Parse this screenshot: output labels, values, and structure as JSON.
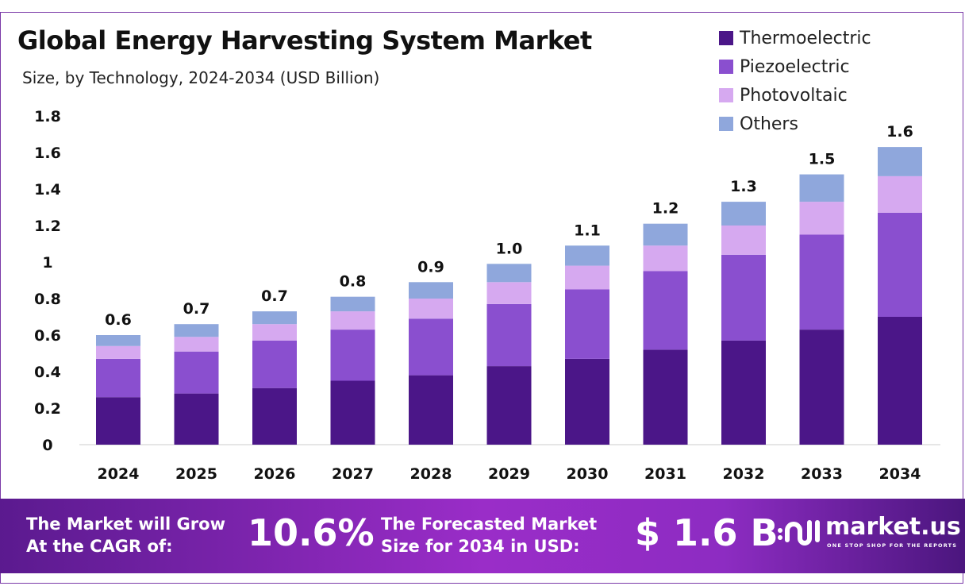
{
  "chart_data": {
    "type": "bar",
    "stacked": true,
    "title": "Global Energy Harvesting System Market",
    "subtitle": "Size, by Technology, 2024-2034 (USD Billion)",
    "categories": [
      "2024",
      "2025",
      "2026",
      "2027",
      "2028",
      "2029",
      "2030",
      "2031",
      "2032",
      "2033",
      "2034"
    ],
    "series": [
      {
        "name": "Thermoelectric",
        "color": "#4b1688",
        "values": [
          0.26,
          0.28,
          0.31,
          0.35,
          0.38,
          0.43,
          0.47,
          0.52,
          0.57,
          0.63,
          0.7
        ]
      },
      {
        "name": "Piezoelectric",
        "color": "#8a4fcf",
        "values": [
          0.21,
          0.23,
          0.26,
          0.28,
          0.31,
          0.34,
          0.38,
          0.43,
          0.47,
          0.52,
          0.57
        ]
      },
      {
        "name": "Photovoltaic",
        "color": "#d6a9f0",
        "values": [
          0.07,
          0.08,
          0.09,
          0.1,
          0.11,
          0.12,
          0.13,
          0.14,
          0.16,
          0.18,
          0.2
        ]
      },
      {
        "name": "Others",
        "color": "#8fa7dc",
        "values": [
          0.06,
          0.07,
          0.07,
          0.08,
          0.09,
          0.1,
          0.11,
          0.12,
          0.13,
          0.15,
          0.16
        ]
      }
    ],
    "totals_labels": [
      "0.6",
      "0.7",
      "0.7",
      "0.8",
      "0.9",
      "1.0",
      "1.1",
      "1.2",
      "1.3",
      "1.5",
      "1.6"
    ],
    "yticks": [
      "0",
      "0.2",
      "0.4",
      "0.6",
      "0.8",
      "1",
      "1.2",
      "1.4",
      "1.6",
      "1.8"
    ],
    "ylim": [
      0,
      1.8
    ],
    "grid": false,
    "legend": "top-right"
  },
  "footer": {
    "cagr_label_1": "The Market will Grow",
    "cagr_label_2": "At the CAGR of:",
    "cagr_value": "10.6%",
    "forecast_label_1": "The Forecasted Market",
    "forecast_label_2": "Size for 2034 in USD:",
    "forecast_value": "$ 1.6 B",
    "logo_name": "market.us",
    "logo_tagline": "ONE STOP SHOP FOR THE REPORTS"
  }
}
